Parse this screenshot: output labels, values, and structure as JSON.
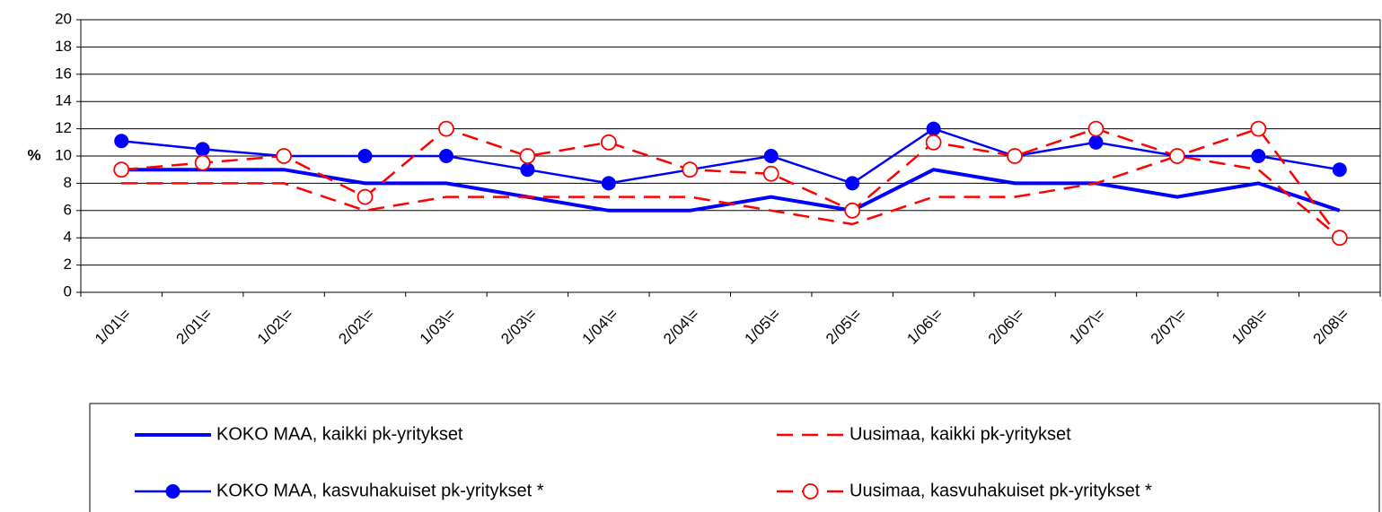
{
  "chart_data": {
    "type": "line",
    "y_label": "%",
    "categories": [
      "1/01\\=",
      "2/01\\=",
      "1/02\\=",
      "2/02\\=",
      "1/03\\=",
      "2/03\\=",
      "1/04\\=",
      "2/04\\=",
      "1/05\\=",
      "2/05\\=",
      "1/06\\=",
      "2/06\\=",
      "1/07\\=",
      "2/07\\=",
      "1/08\\=",
      "2/08\\="
    ],
    "ylim": [
      0,
      20
    ],
    "yticks": [
      0,
      2,
      4,
      6,
      8,
      10,
      12,
      14,
      16,
      18,
      20
    ],
    "grid": true,
    "series": [
      {
        "name": "KOKO MAA, kaikki pk-yritykset",
        "color": "#0000ff",
        "style": "solid-thick",
        "values": [
          9,
          9,
          9,
          8,
          8,
          7,
          6,
          6,
          7,
          6,
          9,
          8,
          8,
          7,
          8,
          6
        ]
      },
      {
        "name": "Uusimaa, kaikki pk-yritykset",
        "color": "#ff0000",
        "style": "dashed",
        "values": [
          8,
          8,
          8,
          6,
          7,
          7,
          7,
          7,
          6,
          5,
          7,
          7,
          8,
          10,
          9,
          4
        ]
      },
      {
        "name": "KOKO MAA, kasvuhakuiset pk-yritykset *",
        "color": "#0000ff",
        "style": "solid-dot",
        "values": [
          11.1,
          10.5,
          10,
          10,
          10,
          9,
          8,
          9,
          10,
          8,
          12,
          10,
          11,
          10,
          10,
          9
        ]
      },
      {
        "name": "Uusimaa, kasvuhakuiset pk-yritykset *",
        "color": "#ff0000",
        "style": "dashed-circle",
        "values": [
          9,
          9.5,
          10,
          7,
          12,
          10,
          11,
          9,
          8.7,
          6,
          11,
          10,
          12,
          10,
          12,
          4
        ]
      }
    ]
  }
}
